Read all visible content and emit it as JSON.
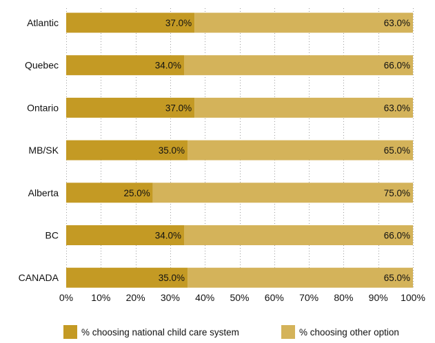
{
  "chart_data": {
    "type": "bar",
    "orientation": "horizontal",
    "stacked": true,
    "categories": [
      "Atlantic",
      "Quebec",
      "Ontario",
      "MB/SK",
      "Alberta",
      "BC",
      "CANADA"
    ],
    "series": [
      {
        "name": "% choosing national child care system",
        "values": [
          37.0,
          34.0,
          37.0,
          35.0,
          25.0,
          34.0,
          35.0
        ],
        "labels": [
          "37.0%",
          "34.0%",
          "37.0%",
          "35.0%",
          "25.0%",
          "34.0%",
          "35.0%"
        ],
        "color": "#C49A24"
      },
      {
        "name": "% choosing other option",
        "values": [
          63.0,
          66.0,
          63.0,
          65.0,
          75.0,
          66.0,
          65.0
        ],
        "labels": [
          "63.0%",
          "66.0%",
          "63.0%",
          "65.0%",
          "75.0%",
          "66.0%",
          "65.0%"
        ],
        "color": "#D4B35A"
      }
    ],
    "xlim": [
      0,
      100
    ],
    "x_ticks": [
      "0%",
      "10%",
      "20%",
      "30%",
      "40%",
      "50%",
      "60%",
      "70%",
      "80%",
      "90%",
      "100%"
    ],
    "grid": "vertical dotted",
    "legend_position": "bottom"
  }
}
